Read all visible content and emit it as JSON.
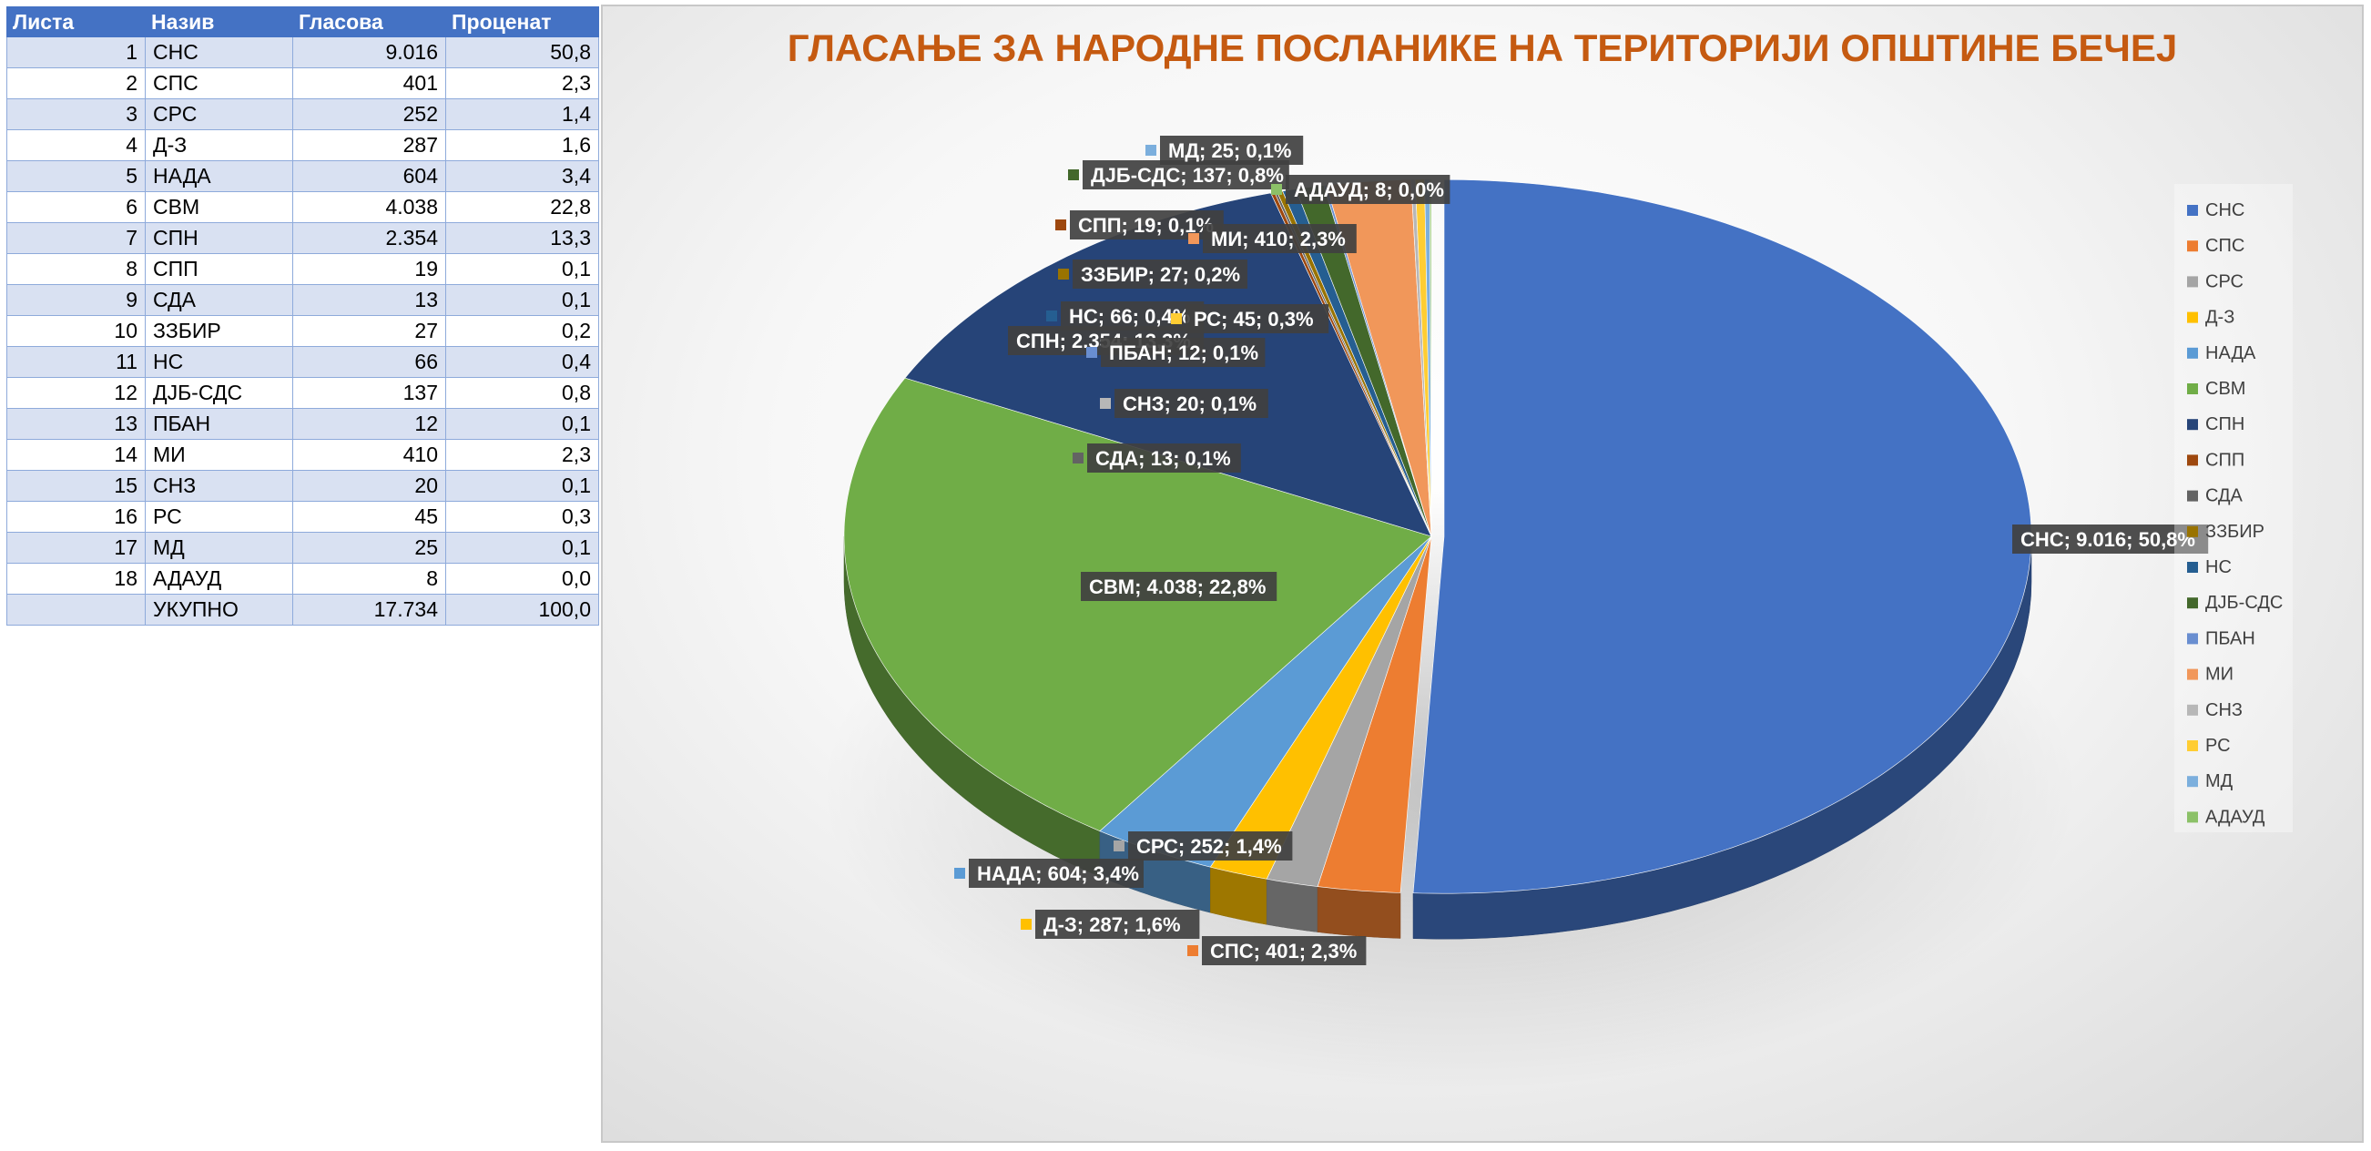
{
  "table": {
    "headers": [
      "Листа",
      "Назив",
      "Гласова",
      "Проценат"
    ],
    "rows": [
      [
        "1",
        "СНС",
        "9.016",
        "50,8"
      ],
      [
        "2",
        "СПС",
        "401",
        "2,3"
      ],
      [
        "3",
        "СРС",
        "252",
        "1,4"
      ],
      [
        "4",
        "Д-З",
        "287",
        "1,6"
      ],
      [
        "5",
        "НАДА",
        "604",
        "3,4"
      ],
      [
        "6",
        "СВМ",
        "4.038",
        "22,8"
      ],
      [
        "7",
        "СПН",
        "2.354",
        "13,3"
      ],
      [
        "8",
        "СПП",
        "19",
        "0,1"
      ],
      [
        "9",
        "СДА",
        "13",
        "0,1"
      ],
      [
        "10",
        "ЗЗБИР",
        "27",
        "0,2"
      ],
      [
        "11",
        "НС",
        "66",
        "0,4"
      ],
      [
        "12",
        "ДЈБ-СДС",
        "137",
        "0,8"
      ],
      [
        "13",
        "ПБАН",
        "12",
        "0,1"
      ],
      [
        "14",
        "МИ",
        "410",
        "2,3"
      ],
      [
        "15",
        "СНЗ",
        "20",
        "0,1"
      ],
      [
        "16",
        "РС",
        "45",
        "0,3"
      ],
      [
        "17",
        "МД",
        "25",
        "0,1"
      ],
      [
        "18",
        "АДАУД",
        "8",
        "0,0"
      ]
    ],
    "total": [
      "",
      "УКУПНО",
      "17.734",
      "100,0"
    ]
  },
  "chart_data": {
    "type": "pie",
    "title": "ГЛАСАЊЕ ЗА НАРОДНЕ ПОСЛАНИКЕ НА ТЕРИТОРИЈИ ОПШТИНЕ БЕЧЕЈ",
    "style": "3d-exploded",
    "legend_position": "right",
    "slices": [
      {
        "name": "СНС",
        "value": 9016,
        "percent": "50,8%",
        "label": "СНС; 9.016; 50,8%",
        "color": "#4472c4"
      },
      {
        "name": "СПС",
        "value": 401,
        "percent": "2,3%",
        "label": "СПС; 401; 2,3%",
        "color": "#ed7d31"
      },
      {
        "name": "СРС",
        "value": 252,
        "percent": "1,4%",
        "label": "СРС; 252; 1,4%",
        "color": "#a5a5a5"
      },
      {
        "name": "Д-З",
        "value": 287,
        "percent": "1,6%",
        "label": "Д-З; 287; 1,6%",
        "color": "#ffc000"
      },
      {
        "name": "НАДА",
        "value": 604,
        "percent": "3,4%",
        "label": "НАДА; 604; 3,4%",
        "color": "#5b9bd5"
      },
      {
        "name": "СВМ",
        "value": 4038,
        "percent": "22,8%",
        "label": "СВМ; 4.038; 22,8%",
        "color": "#70ad47"
      },
      {
        "name": "СПН",
        "value": 2354,
        "percent": "13,3%",
        "label": "СПН; 2.354; 13,3%",
        "color": "#264478"
      },
      {
        "name": "СПП",
        "value": 19,
        "percent": "0,1%",
        "label": "СПП; 19; 0,1%",
        "color": "#9e480e"
      },
      {
        "name": "СДА",
        "value": 13,
        "percent": "0,1%",
        "label": "СДА; 13; 0,1%",
        "color": "#636363"
      },
      {
        "name": "ЗЗБИР",
        "value": 27,
        "percent": "0,2%",
        "label": "ЗЗБИР; 27; 0,2%",
        "color": "#997300"
      },
      {
        "name": "НС",
        "value": 66,
        "percent": "0,4%",
        "label": "НС; 66; 0,4%",
        "color": "#255e91"
      },
      {
        "name": "ДЈБ-СДС",
        "value": 137,
        "percent": "0,8%",
        "label": "ДЈБ-СДС; 137; 0,8%",
        "color": "#43682b"
      },
      {
        "name": "ПБАН",
        "value": 12,
        "percent": "0,1%",
        "label": "ПБАН; 12; 0,1%",
        "color": "#698ed0"
      },
      {
        "name": "МИ",
        "value": 410,
        "percent": "2,3%",
        "label": "МИ; 410; 2,3%",
        "color": "#f1975a"
      },
      {
        "name": "СНЗ",
        "value": 20,
        "percent": "0,1%",
        "label": "СНЗ; 20; 0,1%",
        "color": "#b7b7b7"
      },
      {
        "name": "РС",
        "value": 45,
        "percent": "0,3%",
        "label": "РС; 45; 0,3%",
        "color": "#ffcd33"
      },
      {
        "name": "МД",
        "value": 25,
        "percent": "0,1%",
        "label": "МД; 25; 0,1%",
        "color": "#7cafdd"
      },
      {
        "name": "АДАУД",
        "value": 8,
        "percent": "0,0%",
        "label": "АДАУД; 8; 0,0%",
        "color": "#8cc168"
      }
    ]
  }
}
